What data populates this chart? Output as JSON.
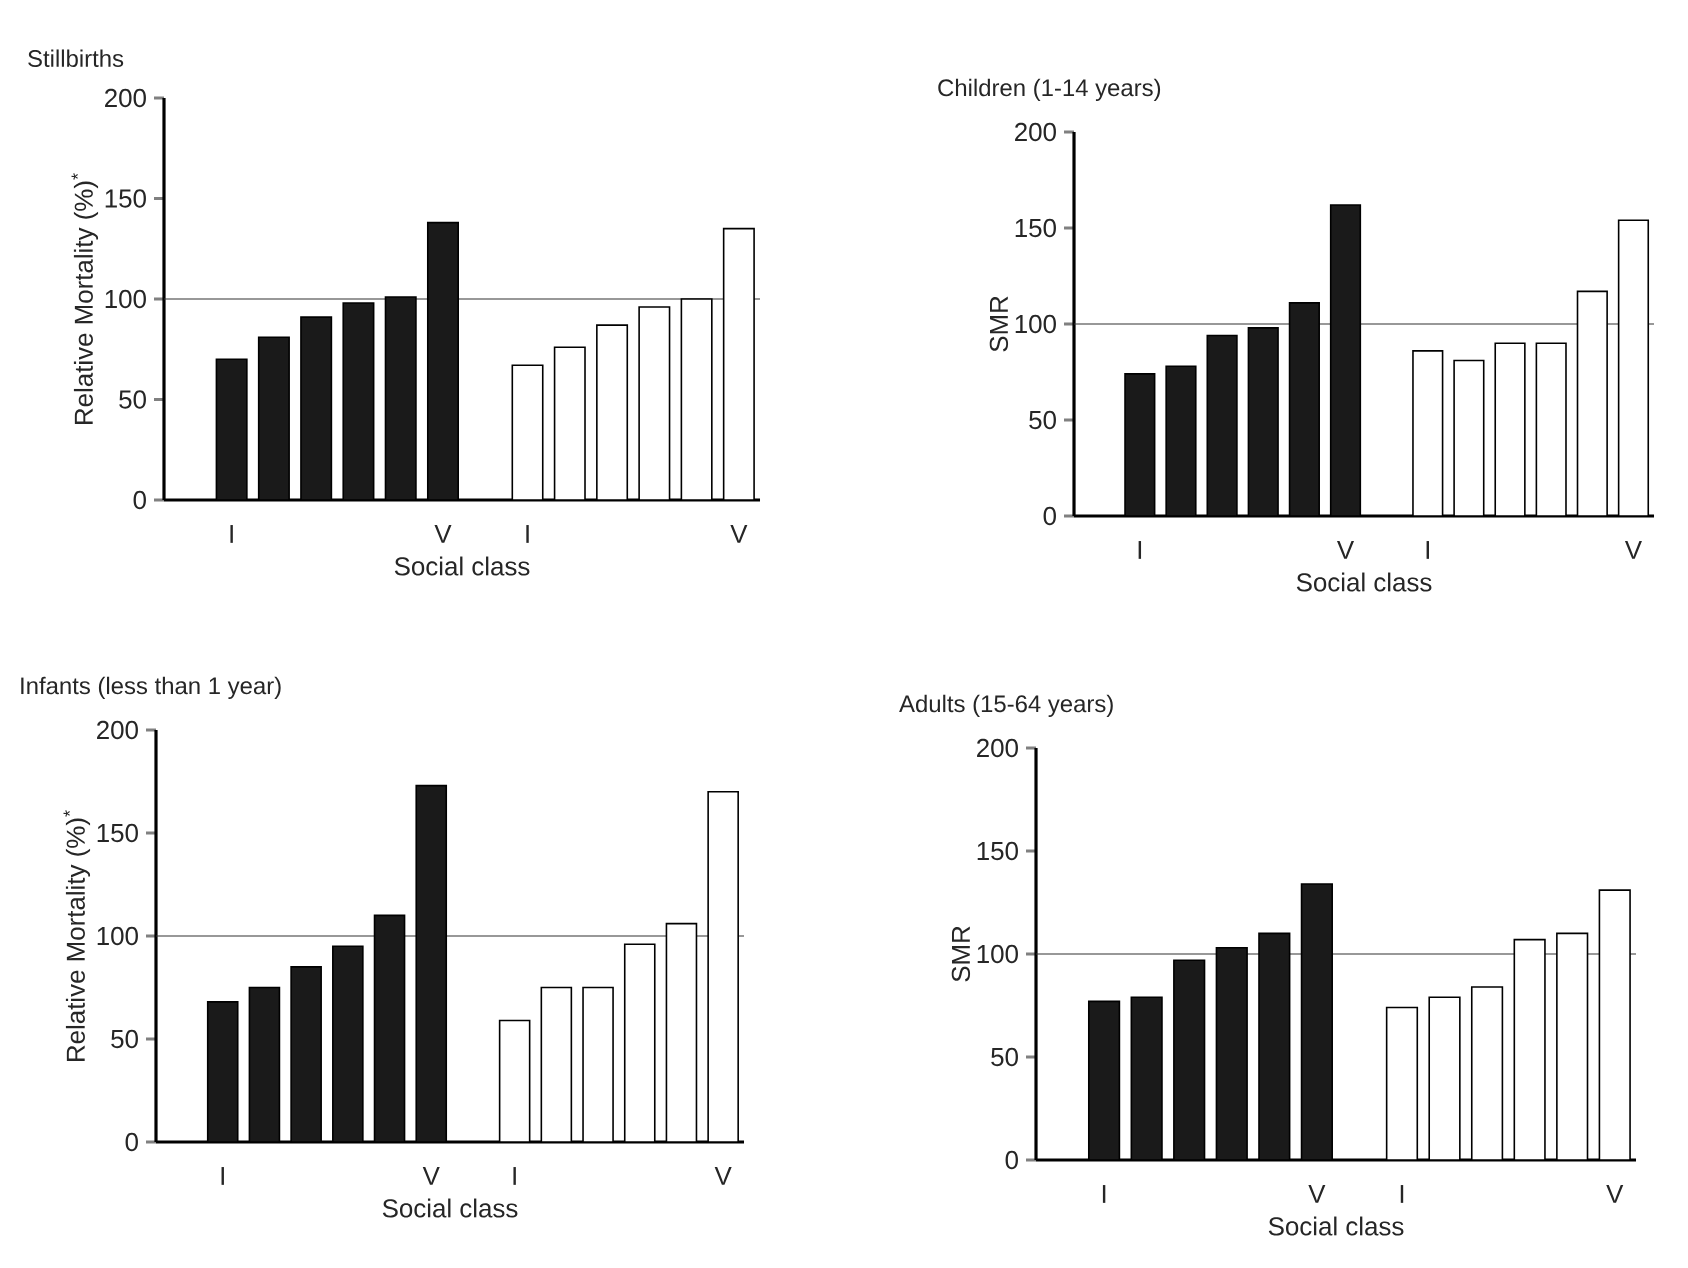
{
  "chart_data": [
    {
      "type": "bar",
      "title": "Stillbirths",
      "xlabel": "Social class",
      "ylabel": "Relative Mortality (%)$^{*}$",
      "categories": [
        "I",
        null,
        null,
        null,
        null,
        "V",
        null,
        "I",
        null,
        null,
        null,
        null,
        "V"
      ],
      "series": [
        {
          "color": "#1a1a1a",
          "values": [
            70,
            81,
            91,
            98,
            101,
            138,
            null,
            null,
            null,
            null,
            null,
            null,
            null
          ]
        },
        {
          "color": "#ffffff",
          "values": [
            null,
            null,
            null,
            null,
            null,
            null,
            null,
            67,
            76,
            87,
            96,
            100,
            135
          ]
        }
      ],
      "ylim": [
        0,
        200
      ],
      "yticks": [
        0,
        50,
        100,
        150,
        200
      ],
      "ref_lines": [
        {
          "axis": "y",
          "value": 100
        }
      ]
    },
    {
      "type": "bar",
      "title": "Children (1-14 years)",
      "xlabel": "Social class",
      "ylabel": "SMR",
      "categories": [
        "I",
        null,
        null,
        null,
        null,
        "V",
        null,
        "I",
        null,
        null,
        null,
        null,
        "V"
      ],
      "series": [
        {
          "color": "#1a1a1a",
          "values": [
            74,
            78,
            94,
            98,
            111,
            162,
            null,
            null,
            null,
            null,
            null,
            null,
            null
          ]
        },
        {
          "color": "#ffffff",
          "values": [
            null,
            null,
            null,
            null,
            null,
            null,
            null,
            86,
            81,
            90,
            90,
            117,
            154
          ]
        }
      ],
      "ylim": [
        0,
        200
      ],
      "yticks": [
        0,
        50,
        100,
        150,
        200
      ],
      "ref_lines": [
        {
          "axis": "y",
          "value": 100
        }
      ]
    },
    {
      "type": "bar",
      "title": "Infants (less than 1 year)",
      "xlabel": "Social class",
      "ylabel": "Relative Mortality (%)$^{*}$",
      "categories": [
        "I",
        null,
        null,
        null,
        null,
        "V",
        null,
        "I",
        null,
        null,
        null,
        null,
        "V"
      ],
      "series": [
        {
          "color": "#1a1a1a",
          "values": [
            68,
            75,
            85,
            95,
            110,
            173,
            null,
            null,
            null,
            null,
            null,
            null,
            null
          ]
        },
        {
          "color": "#ffffff",
          "values": [
            null,
            null,
            null,
            null,
            null,
            null,
            null,
            59,
            75,
            75,
            96,
            106,
            170
          ]
        }
      ],
      "ylim": [
        0,
        200
      ],
      "yticks": [
        0,
        50,
        100,
        150,
        200
      ],
      "ref_lines": [
        {
          "axis": "y",
          "value": 100
        }
      ]
    },
    {
      "type": "bar",
      "title": "Adults (15-64 years)",
      "xlabel": "Social class",
      "ylabel": "SMR",
      "categories": [
        "I",
        null,
        null,
        null,
        null,
        "V",
        null,
        "I",
        null,
        null,
        null,
        null,
        "V"
      ],
      "series": [
        {
          "color": "#1a1a1a",
          "values": [
            77,
            79,
            97,
            103,
            110,
            134,
            null,
            null,
            null,
            null,
            null,
            null,
            null
          ]
        },
        {
          "color": "#ffffff",
          "values": [
            null,
            null,
            null,
            null,
            null,
            null,
            null,
            74,
            79,
            84,
            107,
            110,
            131
          ]
        }
      ],
      "ylim": [
        0,
        200
      ],
      "yticks": [
        0,
        50,
        100,
        150,
        200
      ],
      "ref_lines": [
        {
          "axis": "y",
          "value": 100
        }
      ]
    }
  ]
}
